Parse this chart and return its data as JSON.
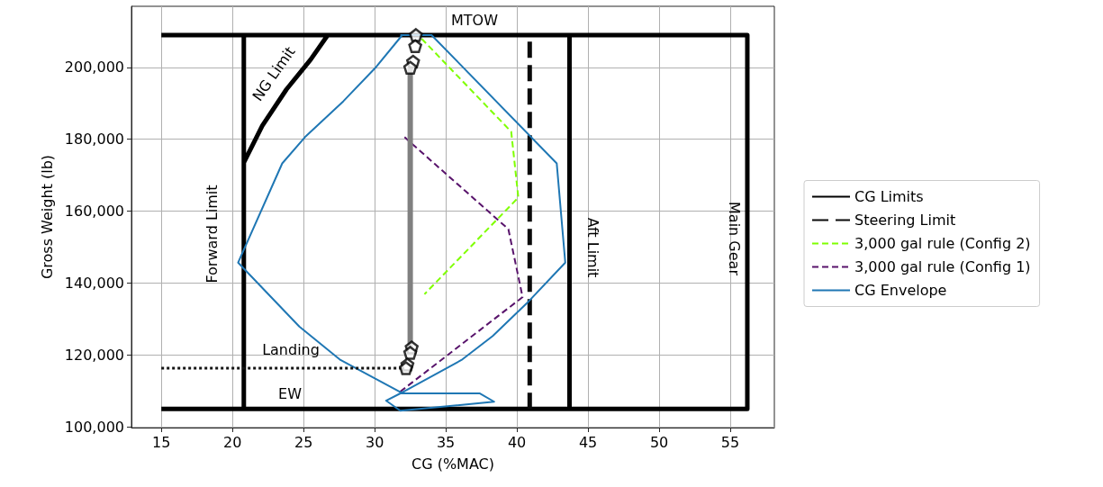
{
  "chart_data": {
    "type": "line",
    "xlabel": "CG (%MAC)",
    "ylabel": "Gross Weight (lb)",
    "xlim": [
      12.9,
      58.1
    ],
    "ylim": [
      99800,
      217000
    ],
    "xticks": [
      15,
      20,
      25,
      30,
      35,
      40,
      45,
      50,
      55
    ],
    "yticks": [
      {
        "value": 100000,
        "label": "100,000"
      },
      {
        "value": 120000,
        "label": "120,000"
      },
      {
        "value": 140000,
        "label": "140,000"
      },
      {
        "value": 160000,
        "label": "160,000"
      },
      {
        "value": 180000,
        "label": "180,000"
      },
      {
        "value": 200000,
        "label": "200,000"
      }
    ],
    "grid": true,
    "legend": "right",
    "marker": "none",
    "series": [
      {
        "name": "CG Limits",
        "color": "#000000",
        "line_style": "solid",
        "x": [
          15,
          56.2,
          56.2,
          15,
          null,
          20.8,
          20.8,
          null,
          43.7,
          43.7,
          null,
          20.8,
          22.1,
          23.8,
          25.5,
          26.7
        ],
        "values": [
          209000,
          209000,
          105000,
          105000,
          null,
          105000,
          209000,
          null,
          105000,
          209000,
          null,
          173500,
          183800,
          193900,
          202200,
          209000
        ]
      },
      {
        "name": "Steering Limit",
        "color": "#0a0a0a",
        "line_style": "dashed",
        "x": [
          40.9,
          40.9
        ],
        "values": [
          105000,
          209000
        ]
      },
      {
        "name": "3,000 gal rule (Config 2)",
        "color": "#7fff00",
        "line_style": "dashed",
        "x": [
          33.3,
          39.6,
          40.1,
          33.5
        ],
        "values": [
          208000,
          182100,
          163800,
          136900
        ]
      },
      {
        "name": "3,000 gal rule (Config 1)",
        "color": "#58136b",
        "line_style": "dashed",
        "x": [
          32.1,
          39.4,
          40.4,
          31.8
        ],
        "values": [
          180600,
          155000,
          136100,
          109800
        ]
      },
      {
        "name": "CG Envelope",
        "color": "#1f77b4",
        "line_style": "solid",
        "x": [
          31.8,
          34.0,
          42.8,
          43.4,
          40.7,
          38.3,
          36.1,
          31.8,
          37.4,
          38.4,
          31.8,
          30.8,
          31.9,
          27.6,
          24.7,
          20.4,
          23.5,
          25.1,
          27.8,
          30.1,
          31.9
        ],
        "values": [
          209000,
          209000,
          173300,
          145700,
          134400,
          125300,
          118600,
          109300,
          109300,
          107000,
          104500,
          107300,
          109500,
          118600,
          127900,
          145700,
          173300,
          180600,
          190600,
          200100,
          208800
        ]
      },
      {
        "color": "#141414",
        "line_style": "dotted",
        "x": [
          15,
          32.0
        ],
        "values": [
          116300,
          116300
        ]
      },
      {
        "color": "#808080",
        "line_style": "solid",
        "x": [
          32.5,
          32.5
        ],
        "values": [
          121100,
          200100
        ]
      },
      {
        "type": "scatter",
        "color": "#ffffff",
        "x": [
          32.9,
          32.85,
          32.7,
          32.5,
          32.6,
          32.5,
          32.3,
          32.2
        ],
        "values": [
          209000,
          205900,
          201600,
          199900,
          122100,
          120600,
          117300,
          116300
        ]
      }
    ],
    "annotations": [
      "MTOW",
      "NG Limit",
      "Forward Limit",
      "Aft Limit",
      "Main Gear",
      "Landing",
      "EW"
    ]
  }
}
